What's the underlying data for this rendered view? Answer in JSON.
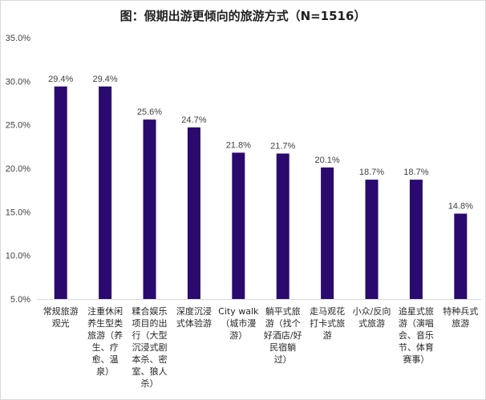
{
  "chart_data": {
    "type": "bar",
    "title": "图：假期出游更倾向的旅游方式（N=1516）",
    "xlabel": "",
    "ylabel": "",
    "ylim": [
      5,
      35
    ],
    "yticks": [
      "5.0%",
      "10.0%",
      "15.0%",
      "20.0%",
      "25.0%",
      "30.0%",
      "35.0%"
    ],
    "grid": false,
    "legend": "none",
    "bar_color": "#2a0a6e",
    "categories": [
      "常规旅游观光",
      "注重休闲养生型类旅游（养生、疗愈、温泉）",
      "糅合娱乐项目的出行（大型沉浸式剧本杀、密室、狼人杀）",
      "深度沉浸式体验游",
      "City walk（城市漫游）",
      "躺平式旅游（找个好酒店/好民宿躺过）",
      "走马观花打卡式旅游",
      "小众/反向式旅游",
      "追星式旅游（演唱会、音乐节、体育赛事）",
      "特种兵式旅游"
    ],
    "category_lines": [
      [
        "常规旅游",
        "观光"
      ],
      [
        "注重休闲",
        "养生型类",
        "旅游（养",
        "生、疗",
        "愈、温",
        "泉）"
      ],
      [
        "糅合娱乐",
        "项目的出",
        "行（大型",
        "沉浸式剧",
        "本杀、密",
        "室、狼人",
        "杀）"
      ],
      [
        "深度沉浸",
        "式体验游"
      ],
      [
        "City walk",
        "（城市漫",
        "游）"
      ],
      [
        "躺平式旅",
        "游（找个",
        "好酒店/好",
        "民宿躺",
        "过）"
      ],
      [
        "走马观花",
        "打卡式旅",
        "游"
      ],
      [
        "小众/反向",
        "式旅游"
      ],
      [
        "追星式旅",
        "游（演唱",
        "会、音乐",
        "节、体育",
        "赛事）"
      ],
      [
        "特种兵式",
        "旅游"
      ]
    ],
    "values": [
      29.4,
      29.4,
      25.6,
      24.7,
      21.8,
      21.7,
      20.1,
      18.7,
      18.7,
      14.8
    ],
    "data_labels": [
      "29.4%",
      "29.4%",
      "25.6%",
      "24.7%",
      "21.8%",
      "21.7%",
      "20.1%",
      "18.7%",
      "18.7%",
      "14.8%"
    ]
  }
}
